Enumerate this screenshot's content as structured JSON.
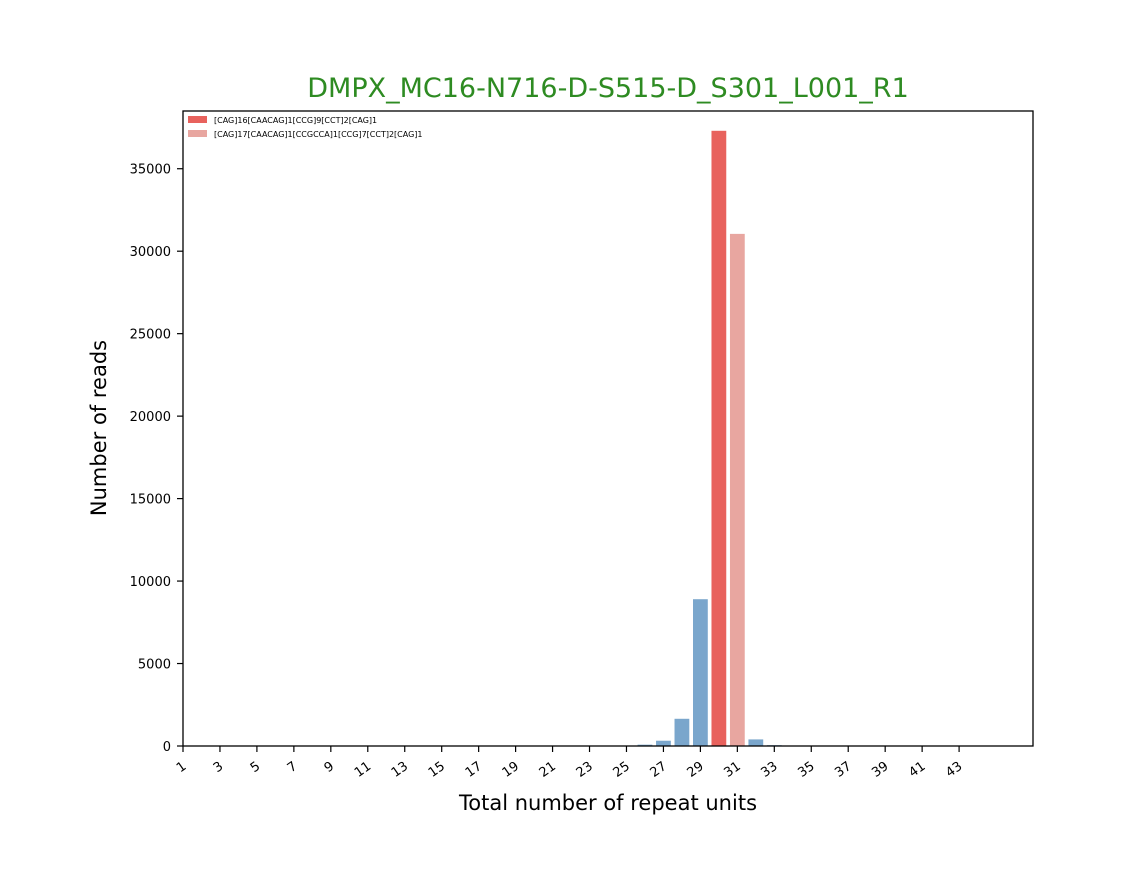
{
  "chart_data": {
    "type": "bar",
    "title": "DMPX_MC16-N716-D-S515-D_S301_L001_R1",
    "title_color": "#2e8b22",
    "xlabel": "Total number of repeat units",
    "ylabel": "Number of reads",
    "xlim": [
      1,
      47
    ],
    "ylim": [
      0,
      38500
    ],
    "x_ticks": [
      1,
      3,
      5,
      7,
      9,
      11,
      13,
      15,
      17,
      19,
      21,
      23,
      25,
      27,
      29,
      31,
      33,
      35,
      37,
      39,
      41,
      43
    ],
    "y_ticks": [
      0,
      5000,
      10000,
      15000,
      20000,
      25000,
      30000,
      35000
    ],
    "grid": false,
    "legend_position": "top-left",
    "background_series_color": "#7aa6cc",
    "bars": [
      {
        "x": 26,
        "value": 80,
        "series": null
      },
      {
        "x": 27,
        "value": 320,
        "series": null
      },
      {
        "x": 28,
        "value": 1650,
        "series": null
      },
      {
        "x": 29,
        "value": 8900,
        "series": null
      },
      {
        "x": 30,
        "value": 37300,
        "series": 0
      },
      {
        "x": 31,
        "value": 31050,
        "series": 1
      },
      {
        "x": 32,
        "value": 400,
        "series": null
      },
      {
        "x": 33,
        "value": 50,
        "series": null
      }
    ],
    "series": [
      {
        "name": "[CAG]16[CAACAG]1[CCG]9[CCT]2[CAG]1",
        "color": "#e8625d"
      },
      {
        "name": "[CAG]17[CAACAG]1[CCGCCA]1[CCG]7[CCT]2[CAG]1",
        "color": "#e8a6a0"
      }
    ]
  }
}
